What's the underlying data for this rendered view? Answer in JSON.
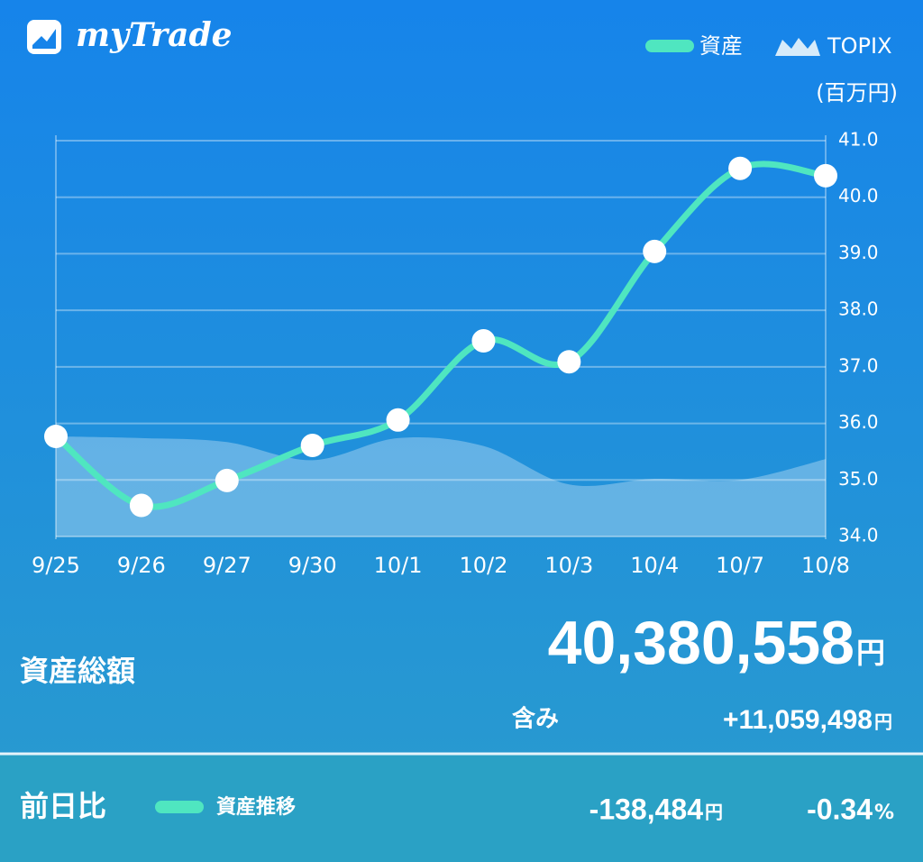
{
  "app": {
    "name": "myTrade"
  },
  "chart_data": {
    "type": "line",
    "unit_label": "(百万円)",
    "categories": [
      "9/25",
      "9/26",
      "9/27",
      "9/30",
      "10/1",
      "10/2",
      "10/3",
      "10/4",
      "10/7",
      "10/8"
    ],
    "series": [
      {
        "name": "資産",
        "color": "#4fe6c0",
        "style": "line",
        "values": [
          35.77,
          34.55,
          34.99,
          35.61,
          36.06,
          37.46,
          37.09,
          39.04,
          40.51,
          40.38
        ]
      },
      {
        "name": "TOPIX",
        "color": "#ffffff",
        "style": "area",
        "values": [
          35.77,
          35.74,
          35.67,
          35.35,
          35.74,
          35.6,
          34.92,
          35.02,
          35.0,
          35.37
        ]
      }
    ],
    "ylim": [
      34,
      41
    ],
    "yticks": [
      {
        "value": 34,
        "label": "34.0"
      },
      {
        "value": 35,
        "label": "35.0"
      },
      {
        "value": 36,
        "label": "36.0"
      },
      {
        "value": 37,
        "label": "37.0"
      },
      {
        "value": 38,
        "label": "38.0"
      },
      {
        "value": 39,
        "label": "39.0"
      },
      {
        "value": 40,
        "label": "40.0"
      },
      {
        "value": 41,
        "label": "41.0"
      }
    ],
    "grid": true,
    "legend": "top-right"
  },
  "summary": {
    "total": {
      "label": "資産総額",
      "value": "40,380,558",
      "unit": "円"
    },
    "unrealized": {
      "label": "含み",
      "value": "+11,059,498",
      "unit": "円"
    },
    "daily": {
      "label": "前日比",
      "legend": "資産推移",
      "amount": "-138,484",
      "amount_unit": "円",
      "percent": "-0.34",
      "percent_unit": "%"
    }
  }
}
